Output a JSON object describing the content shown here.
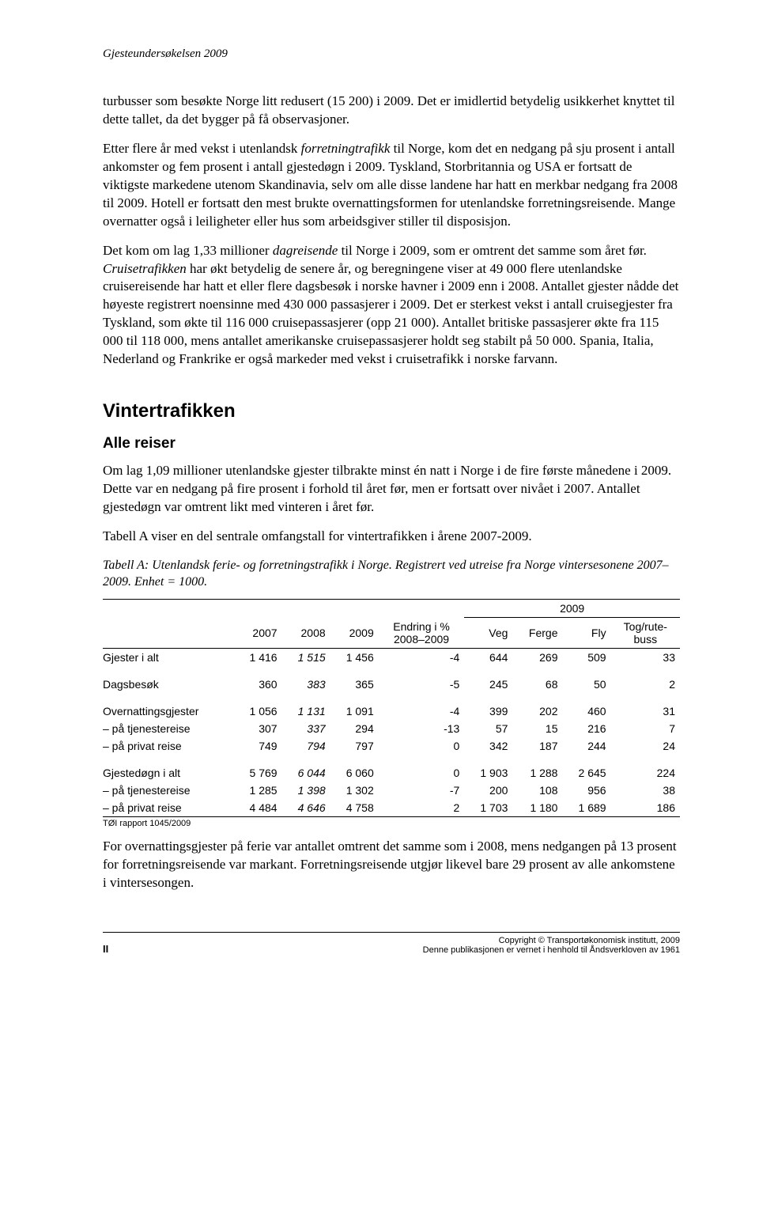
{
  "doc_header": "Gjesteundersøkelsen 2009",
  "para1_a": "turbusser som besøkte Norge litt redusert (15 200) i 2009. Det er imidlertid betydelig usikkerhet knyttet til dette tallet, da det bygger på få observasjoner.",
  "para2_a": "Etter flere år med vekst i utenlandsk ",
  "para2_it1": "forretningtrafikk",
  "para2_b": " til Norge, kom det en nedgang på sju prosent i antall ankomster og fem prosent i antall gjestedøgn i 2009. Tyskland, Storbritannia og USA er fortsatt de viktigste markedene utenom Skandinavia, selv om alle disse landene har hatt en merkbar nedgang fra 2008 til 2009. Hotell er fortsatt den mest brukte overnattingsformen for utenlandske forretningsreisende. Mange overnatter også i leiligheter eller hus som arbeidsgiver stiller til disposisjon.",
  "para3_a": "Det kom om lag 1,33 millioner ",
  "para3_it1": "dagreisende",
  "para3_b": " til Norge i 2009, som er omtrent det samme som året før. ",
  "para3_it2": "Cruisetrafikken",
  "para3_c": " har økt betydelig de senere år, og beregningene viser at 49 000 flere utenlandske cruisereisende har hatt et eller flere dagsbesøk i norske havner i 2009 enn i 2008. Antallet gjester nådde det høyeste registrert noensinne med 430 000 passasjerer i 2009. Det er sterkest vekst i antall cruisegjester fra Tyskland, som økte til 116 000 cruisepassasjerer (opp 21 000). Antallet britiske passasjerer økte fra 115 000 til 118 000, mens antallet amerikanske cruisepassasjerer holdt seg stabilt på 50 000. Spania, Italia, Nederland og Frankrike er også markeder med vekst i cruisetrafikk i norske farvann.",
  "section_title": "Vintertrafikken",
  "sub_title": "Alle reiser",
  "para4": "Om lag 1,09 millioner utenlandske gjester tilbrakte minst én natt i Norge i de fire første månedene i 2009. Dette var en nedgang på fire prosent i forhold til året før, men er fortsatt over nivået i 2007. Antallet gjestedøgn var omtrent likt med vinteren i året før.",
  "para5": "Tabell A viser en del sentrale omfangstall for vintertrafikken i årene 2007-2009.",
  "table_caption": "Tabell A: Utenlandsk ferie- og forretningstrafikk i Norge. Registrert ved utreise fra Norge vintersesonene 2007–2009. Enhet = 1000.",
  "table": {
    "group_header": "2009",
    "columns": [
      "",
      "2007",
      "2008",
      "2009",
      "Endring i %\n2008–2009",
      "Veg",
      "Ferge",
      "Fly",
      "Tog/rute-\nbuss"
    ],
    "rows": [
      {
        "label": "Gjester i alt",
        "c": [
          "1 416",
          "1 515",
          "1 456",
          "-4",
          "644",
          "269",
          "509",
          "33"
        ],
        "ital2008": true
      },
      {
        "label": "Dagsbesøk",
        "c": [
          "360",
          "383",
          "365",
          "-5",
          "245",
          "68",
          "50",
          "2"
        ],
        "ital2008": true
      },
      {
        "label": "Overnattingsgjester",
        "c": [
          "1 056",
          "1 131",
          "1 091",
          "-4",
          "399",
          "202",
          "460",
          "31"
        ],
        "ital2008": true
      },
      {
        "label": "– på tjenestereise",
        "c": [
          "307",
          "337",
          "294",
          "-13",
          "57",
          "15",
          "216",
          "7"
        ],
        "ital2008": true
      },
      {
        "label": "– på privat reise",
        "c": [
          "749",
          "794",
          "797",
          "0",
          "342",
          "187",
          "244",
          "24"
        ],
        "ital2008": true
      },
      {
        "label": "Gjestedøgn i alt",
        "c": [
          "5 769",
          "6 044",
          "6 060",
          "0",
          "1 903",
          "1 288",
          "2 645",
          "224"
        ],
        "ital2008": true
      },
      {
        "label": "– på tjenestereise",
        "c": [
          "1 285",
          "1 398",
          "1 302",
          "-7",
          "200",
          "108",
          "956",
          "38"
        ],
        "ital2008": true
      },
      {
        "label": "– på privat reise",
        "c": [
          "4 484",
          "4 646",
          "4 758",
          "2",
          "1 703",
          "1 180",
          "1 689",
          "186"
        ],
        "ital2008": true
      }
    ],
    "spacers_after_row_index": [
      0,
      1,
      4
    ]
  },
  "source_note": "TØI rapport 1045/2009",
  "para6": "For overnattingsgjester på ferie var antallet omtrent det samme som i 2008, mens nedgangen på 13 prosent for forretningsreisende var markant. Forretningsreisende utgjør likevel bare 29 prosent av alle ankomstene i vintersesongen.",
  "footer_page": "II",
  "footer_line1": "Copyright © Transportøkonomisk institutt, 2009",
  "footer_line2": "Denne publikasjonen er vernet i henhold til Åndsverkloven av 1961"
}
